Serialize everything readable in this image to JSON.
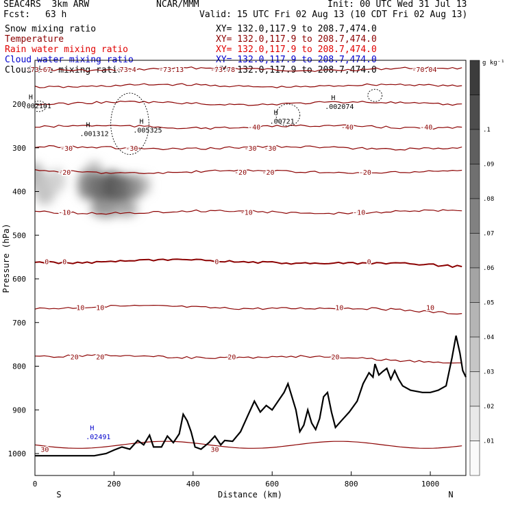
{
  "header": {
    "model": "SEAC4RS  3km ARW",
    "org": "NCAR/MMM",
    "init": "Init: 00 UTC Wed 31 Jul 13",
    "fcst_label": "Fcst:",
    "fcst_value": "63 h",
    "valid": "Valid: 15 UTC Fri 02 Aug 13 (10 CDT Fri 02 Aug 13)"
  },
  "fields": [
    {
      "name": "Snow mixing ratio",
      "color": "#000000",
      "xy": "XY= 132.0,117.9 to 208.7,474.0"
    },
    {
      "name": "Temperature",
      "color": "#8b0000",
      "xy": "XY= 132.0,117.9 to 208.7,474.0"
    },
    {
      "name": "Rain water mixing ratio",
      "color": "#e00000",
      "xy": "XY= 132.0,117.9 to 208.7,474.0"
    },
    {
      "name": "Cloud water mixing ratio",
      "color": "#0000cc",
      "xy": "XY= 132.0,117.9 to 208.7,474.0"
    },
    {
      "name": "Cloud ice mixing ratio",
      "color": "#000000",
      "xy": "XY= 132.0,117.9 to 208.7,474.0"
    }
  ],
  "chart_data": {
    "type": "heatmap",
    "xlabel": "Distance (km)",
    "ylabel": "Pressure (hPa)",
    "xlim": [
      0,
      1090
    ],
    "ylim": [
      1050,
      120
    ],
    "x_ticks": [
      "0",
      "200",
      "400",
      "600",
      "800",
      "1000"
    ],
    "y_ticks": [
      "200",
      "300",
      "400",
      "500",
      "600",
      "700",
      "800",
      "900",
      "1000"
    ],
    "x_end_labels": {
      "left": "S",
      "right": "N"
    },
    "colorbar": {
      "unit": "g kg⁻¹",
      "ticks": [
        ".01",
        ".02",
        ".03",
        ".04",
        ".05",
        ".06",
        ".07",
        ".08",
        ".09",
        ".1"
      ]
    },
    "temperature_contours": [
      {
        "value": -70,
        "pressure": 120,
        "labels": [
          {
            "text": "-73.67",
            "x": 10
          },
          {
            "text": "-73.4",
            "x": 230
          },
          {
            "text": "-73.13",
            "x": 345
          },
          {
            "text": "-73.78",
            "x": 475
          },
          {
            "text": "-70.04",
            "x": 985
          }
        ]
      },
      {
        "value": -60,
        "pressure": 158
      },
      {
        "value": -50,
        "pressure": 198
      },
      {
        "value": -40,
        "pressure": 252,
        "labels": [
          {
            "text": "-40",
            "x": 555
          },
          {
            "text": "-40",
            "x": 790
          },
          {
            "text": "-40",
            "x": 990
          }
        ]
      },
      {
        "value": -30,
        "pressure": 300,
        "labels": [
          {
            "text": "-30",
            "x": 80
          },
          {
            "text": "-30",
            "x": 245
          },
          {
            "text": "-30",
            "x": 545
          },
          {
            "text": "-30",
            "x": 595
          }
        ]
      },
      {
        "value": -20,
        "pressure": 355,
        "labels": [
          {
            "text": "-20",
            "x": 75
          },
          {
            "text": "-20",
            "x": 520
          },
          {
            "text": "-20",
            "x": 590
          },
          {
            "text": "-20",
            "x": 835
          }
        ]
      },
      {
        "value": -10,
        "pressure": 447,
        "labels": [
          {
            "text": "-10",
            "x": 75
          },
          {
            "text": "-10",
            "x": 535
          },
          {
            "text": "-10",
            "x": 820
          }
        ]
      },
      {
        "value": 0,
        "pressure": 560,
        "labels": [
          {
            "text": "0",
            "x": 30
          },
          {
            "text": "0",
            "x": 75
          },
          {
            "text": "0",
            "x": 460
          },
          {
            "text": "0",
            "x": 845
          }
        ]
      },
      {
        "value": 10,
        "pressure": 665,
        "labels": [
          {
            "text": "10",
            "x": 115
          },
          {
            "text": "10",
            "x": 165
          },
          {
            "text": "10",
            "x": 770
          },
          {
            "text": "10",
            "x": 1000
          }
        ]
      },
      {
        "value": 20,
        "pressure": 778,
        "labels": [
          {
            "text": "20",
            "x": 100
          },
          {
            "text": "20",
            "x": 165
          },
          {
            "text": "20",
            "x": 498
          },
          {
            "text": "20",
            "x": 760
          }
        ]
      },
      {
        "value": 30,
        "pressure": 990,
        "labels": [
          {
            "text": "30",
            "x": 25
          },
          {
            "text": "30",
            "x": 455
          }
        ]
      }
    ],
    "maxima_labels": [
      {
        "text": ".002101",
        "x": 5,
        "pressure": 205,
        "color": "#000000"
      },
      {
        "text": ".001312",
        "x": 150,
        "pressure": 268,
        "color": "#000000"
      },
      {
        "text": ".005325",
        "x": 285,
        "pressure": 260,
        "color": "#000000"
      },
      {
        "text": ".00721",
        "x": 625,
        "pressure": 240,
        "color": "#000000"
      },
      {
        "text": ".002074",
        "x": 770,
        "pressure": 206,
        "color": "#000000"
      },
      {
        "text": ".02491",
        "x": 160,
        "pressure": 962,
        "color": "#0000cc"
      }
    ],
    "terrain_surface_pressure": [
      [
        0,
        1005
      ],
      [
        40,
        1005
      ],
      [
        100,
        1005
      ],
      [
        150,
        1005
      ],
      [
        180,
        1000
      ],
      [
        200,
        992
      ],
      [
        220,
        985
      ],
      [
        240,
        990
      ],
      [
        260,
        970
      ],
      [
        275,
        980
      ],
      [
        290,
        958
      ],
      [
        300,
        985
      ],
      [
        320,
        985
      ],
      [
        335,
        960
      ],
      [
        350,
        975
      ],
      [
        365,
        955
      ],
      [
        375,
        910
      ],
      [
        385,
        925
      ],
      [
        395,
        950
      ],
      [
        405,
        985
      ],
      [
        420,
        990
      ],
      [
        440,
        975
      ],
      [
        455,
        960
      ],
      [
        470,
        980
      ],
      [
        480,
        970
      ],
      [
        500,
        972
      ],
      [
        520,
        950
      ],
      [
        540,
        910
      ],
      [
        555,
        880
      ],
      [
        570,
        905
      ],
      [
        585,
        890
      ],
      [
        600,
        900
      ],
      [
        615,
        880
      ],
      [
        630,
        860
      ],
      [
        640,
        840
      ],
      [
        650,
        870
      ],
      [
        660,
        900
      ],
      [
        670,
        950
      ],
      [
        680,
        935
      ],
      [
        690,
        900
      ],
      [
        700,
        930
      ],
      [
        710,
        945
      ],
      [
        720,
        920
      ],
      [
        730,
        870
      ],
      [
        740,
        860
      ],
      [
        750,
        905
      ],
      [
        760,
        940
      ],
      [
        775,
        925
      ],
      [
        795,
        905
      ],
      [
        815,
        880
      ],
      [
        830,
        840
      ],
      [
        845,
        815
      ],
      [
        855,
        825
      ],
      [
        860,
        795
      ],
      [
        870,
        820
      ],
      [
        880,
        812
      ],
      [
        890,
        805
      ],
      [
        900,
        830
      ],
      [
        910,
        810
      ],
      [
        920,
        830
      ],
      [
        930,
        845
      ],
      [
        950,
        855
      ],
      [
        980,
        860
      ],
      [
        1000,
        860
      ],
      [
        1020,
        855
      ],
      [
        1040,
        845
      ],
      [
        1055,
        780
      ],
      [
        1065,
        730
      ],
      [
        1075,
        770
      ],
      [
        1082,
        810
      ],
      [
        1090,
        825
      ]
    ]
  }
}
